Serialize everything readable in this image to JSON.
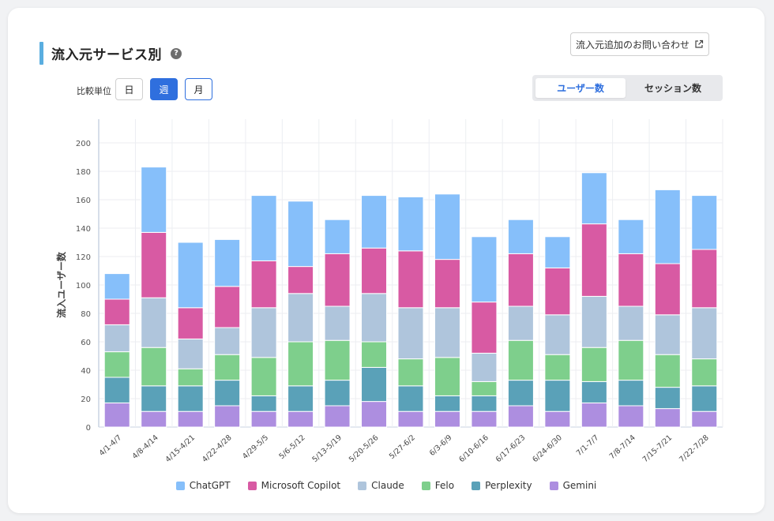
{
  "header": {
    "title": "流入元サービス別",
    "help_icon": "?",
    "contact_button": "流入元追加のお問い合わせ"
  },
  "controls": {
    "unit_label": "比較単位",
    "units": [
      "日",
      "週",
      "月"
    ],
    "selected_unit": "週",
    "metric_tabs": [
      "ユーザー数",
      "セッション数"
    ],
    "selected_metric": "ユーザー数"
  },
  "colors": {
    "ChatGPT": "#86bffa",
    "Microsoft Copilot": "#d85aa3",
    "Claude": "#afc5dc",
    "Felo": "#7ecf8c",
    "Perplexity": "#5aa1b8",
    "Gemini": "#ad8ee0",
    "accent": "#2f6fde"
  },
  "chart_data": {
    "type": "bar",
    "stacked": true,
    "ylabel": "流入ユーザー数",
    "xlabel": "",
    "ylim": [
      0,
      200
    ],
    "yticks": [
      0,
      20,
      40,
      60,
      80,
      100,
      120,
      140,
      160,
      180,
      200
    ],
    "grid": true,
    "legend_position": "bottom",
    "categories": [
      "4/1-4/7",
      "4/8-4/14",
      "4/15-4/21",
      "4/22-4/28",
      "4/29-5/5",
      "5/6-5/12",
      "5/13-5/19",
      "5/20-5/26",
      "5/27-6/2",
      "6/3-6/9",
      "6/10-6/16",
      "6/17-6/23",
      "6/24-6/30",
      "7/1-7/7",
      "7/8-7/14",
      "7/15-7/21",
      "7/22-7/28"
    ],
    "series": [
      {
        "name": "Gemini",
        "values": [
          17,
          11,
          11,
          15,
          11,
          11,
          15,
          18,
          11,
          11,
          11,
          15,
          11,
          17,
          15,
          13,
          11
        ]
      },
      {
        "name": "Perplexity",
        "values": [
          18,
          18,
          18,
          18,
          11,
          18,
          18,
          24,
          18,
          11,
          11,
          18,
          22,
          15,
          18,
          15,
          18
        ]
      },
      {
        "name": "Felo",
        "values": [
          18,
          27,
          12,
          18,
          27,
          31,
          28,
          18,
          19,
          27,
          10,
          28,
          18,
          24,
          28,
          23,
          19
        ]
      },
      {
        "name": "Claude",
        "values": [
          19,
          35,
          21,
          19,
          35,
          34,
          24,
          34,
          36,
          35,
          20,
          24,
          28,
          36,
          24,
          28,
          36
        ]
      },
      {
        "name": "Microsoft Copilot",
        "values": [
          18,
          46,
          22,
          29,
          33,
          19,
          37,
          32,
          40,
          34,
          36,
          37,
          33,
          51,
          37,
          36,
          41
        ]
      },
      {
        "name": "ChatGPT",
        "values": [
          18,
          46,
          46,
          33,
          46,
          46,
          24,
          37,
          38,
          46,
          46,
          24,
          22,
          36,
          24,
          52,
          38
        ]
      }
    ]
  }
}
